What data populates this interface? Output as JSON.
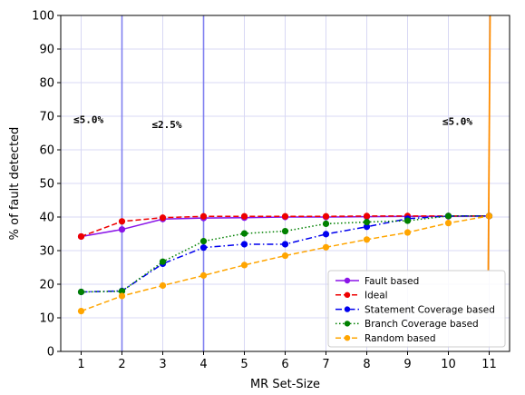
{
  "chart_data": {
    "type": "line",
    "xlabel": "MR Set-Size",
    "ylabel": "% of fault detected",
    "x": [
      1,
      2,
      3,
      4,
      5,
      6,
      7,
      8,
      9,
      10,
      11
    ],
    "xlim": [
      0.5,
      11.5
    ],
    "ylim": [
      0,
      100
    ],
    "xticks": [
      1,
      2,
      3,
      4,
      5,
      6,
      7,
      8,
      9,
      10,
      11
    ],
    "yticks": [
      0,
      10,
      20,
      30,
      40,
      50,
      60,
      70,
      80,
      90,
      100
    ],
    "grid": true,
    "legend_position": "lower-right",
    "series": [
      {
        "name": "Fault based",
        "color": "#8a14e8",
        "dash": "solid",
        "values": [
          34.2,
          36.3,
          39.4,
          39.7,
          39.8,
          40.0,
          40.0,
          40.1,
          40.2,
          40.2,
          40.3
        ]
      },
      {
        "name": "Ideal",
        "color": "#ee0000",
        "dash": "dashed",
        "values": [
          34.2,
          38.7,
          39.8,
          40.2,
          40.2,
          40.2,
          40.2,
          40.3,
          40.3,
          40.3,
          40.3
        ]
      },
      {
        "name": "Statement Coverage based",
        "color": "#0000ee",
        "dash": "dashdot",
        "values": [
          17.7,
          18.0,
          26.1,
          30.9,
          31.9,
          31.9,
          34.9,
          37.1,
          39.5,
          40.3,
          40.3
        ]
      },
      {
        "name": "Branch Coverage based",
        "color": "#008000",
        "dash": "dotted",
        "values": [
          17.7,
          17.9,
          26.7,
          32.8,
          35.1,
          35.8,
          38.0,
          38.5,
          38.9,
          40.3,
          40.3
        ]
      },
      {
        "name": "Random based",
        "color": "#ffa500",
        "dash": "dashed",
        "values": [
          12.0,
          16.5,
          19.6,
          22.6,
          25.7,
          28.5,
          31.0,
          33.3,
          35.4,
          38.2,
          40.3
        ]
      }
    ],
    "vlines": [
      {
        "x": 2,
        "color": "#8080f0"
      },
      {
        "x": 4,
        "color": "#8080f0"
      }
    ],
    "orange_spike": {
      "x": 11,
      "y_from": 24,
      "y_to": 100,
      "color": "#ff8c00"
    },
    "annotations": [
      {
        "text": "≤5.0%",
        "x": 1.18,
        "y": 68
      },
      {
        "text": "≤2.5%",
        "x": 3.1,
        "y": 66.5
      },
      {
        "text": "≤5.0%",
        "x": 10.22,
        "y": 67.5
      }
    ]
  }
}
